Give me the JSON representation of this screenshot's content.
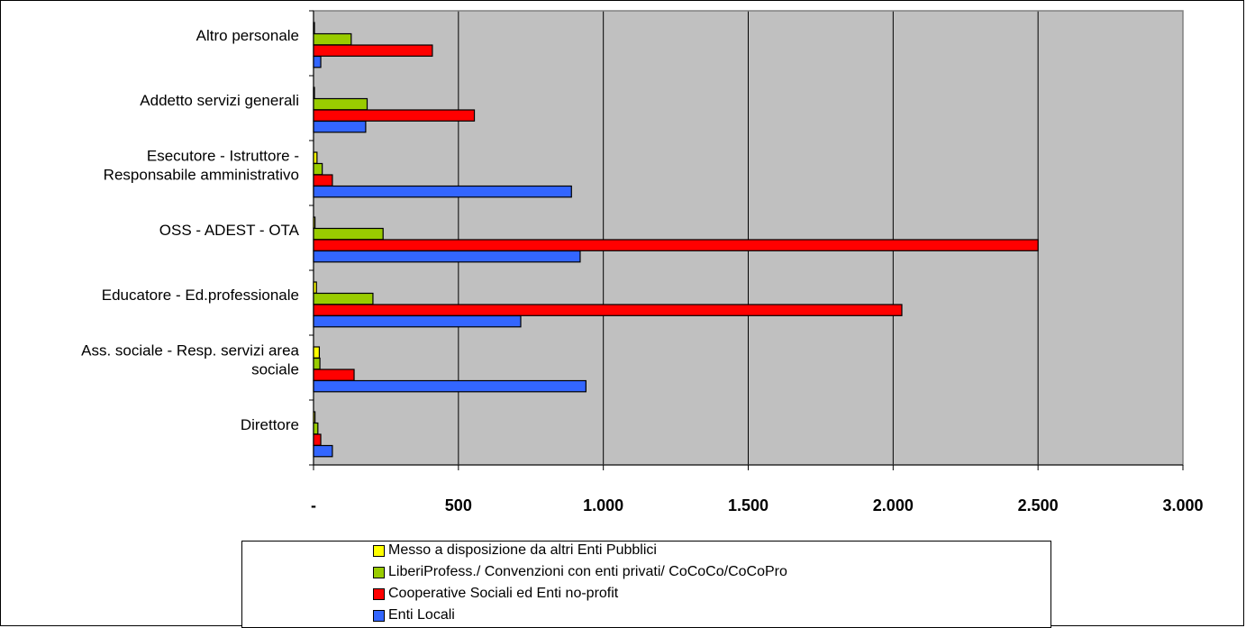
{
  "chart_data": {
    "type": "bar",
    "orientation": "horizontal",
    "categories": [
      "Altro personale",
      "Addetto servizi generali",
      "Esecutore - Istruttore - Responsabile amministrativo",
      "OSS - ADEST - OTA",
      "Educatore  - Ed.professionale",
      "Ass. sociale - Resp. servizi area sociale",
      "Direttore"
    ],
    "category_lines": [
      [
        "Altro personale"
      ],
      [
        "Addetto servizi generali"
      ],
      [
        "Esecutore - Istruttore -",
        "Responsabile amministrativo"
      ],
      [
        "OSS - ADEST - OTA"
      ],
      [
        "Educatore  - Ed.professionale"
      ],
      [
        "Ass. sociale - Resp. servizi area",
        "sociale"
      ],
      [
        "Direttore"
      ]
    ],
    "series": [
      {
        "name": "Messo a disposizione da altri Enti Pubblici",
        "color": "#ffff00",
        "values": [
          3,
          3,
          12,
          5,
          10,
          20,
          5
        ]
      },
      {
        "name": "LiberiProfess./ Convenzioni con enti privati/ CoCoCo/CoCoPro",
        "color": "#99cc00",
        "values": [
          130,
          185,
          30,
          240,
          205,
          22,
          15
        ]
      },
      {
        "name": "Cooperative Sociali ed Enti no-profit",
        "color": "#ff0000",
        "values": [
          410,
          555,
          65,
          2500,
          2030,
          140,
          25
        ]
      },
      {
        "name": "Enti Locali",
        "color": "#3366ff",
        "values": [
          25,
          180,
          890,
          920,
          715,
          940,
          65
        ]
      }
    ],
    "xlim": [
      0,
      3000
    ],
    "x_ticks": [
      0,
      500,
      1000,
      1500,
      2000,
      2500,
      3000
    ],
    "x_tick_labels": [
      "-",
      "500",
      "1.000",
      "1.500",
      "2.000",
      "2.500",
      "3.000"
    ],
    "plot_background": "#c0c0c0",
    "grid": true,
    "legend_position": "bottom"
  }
}
